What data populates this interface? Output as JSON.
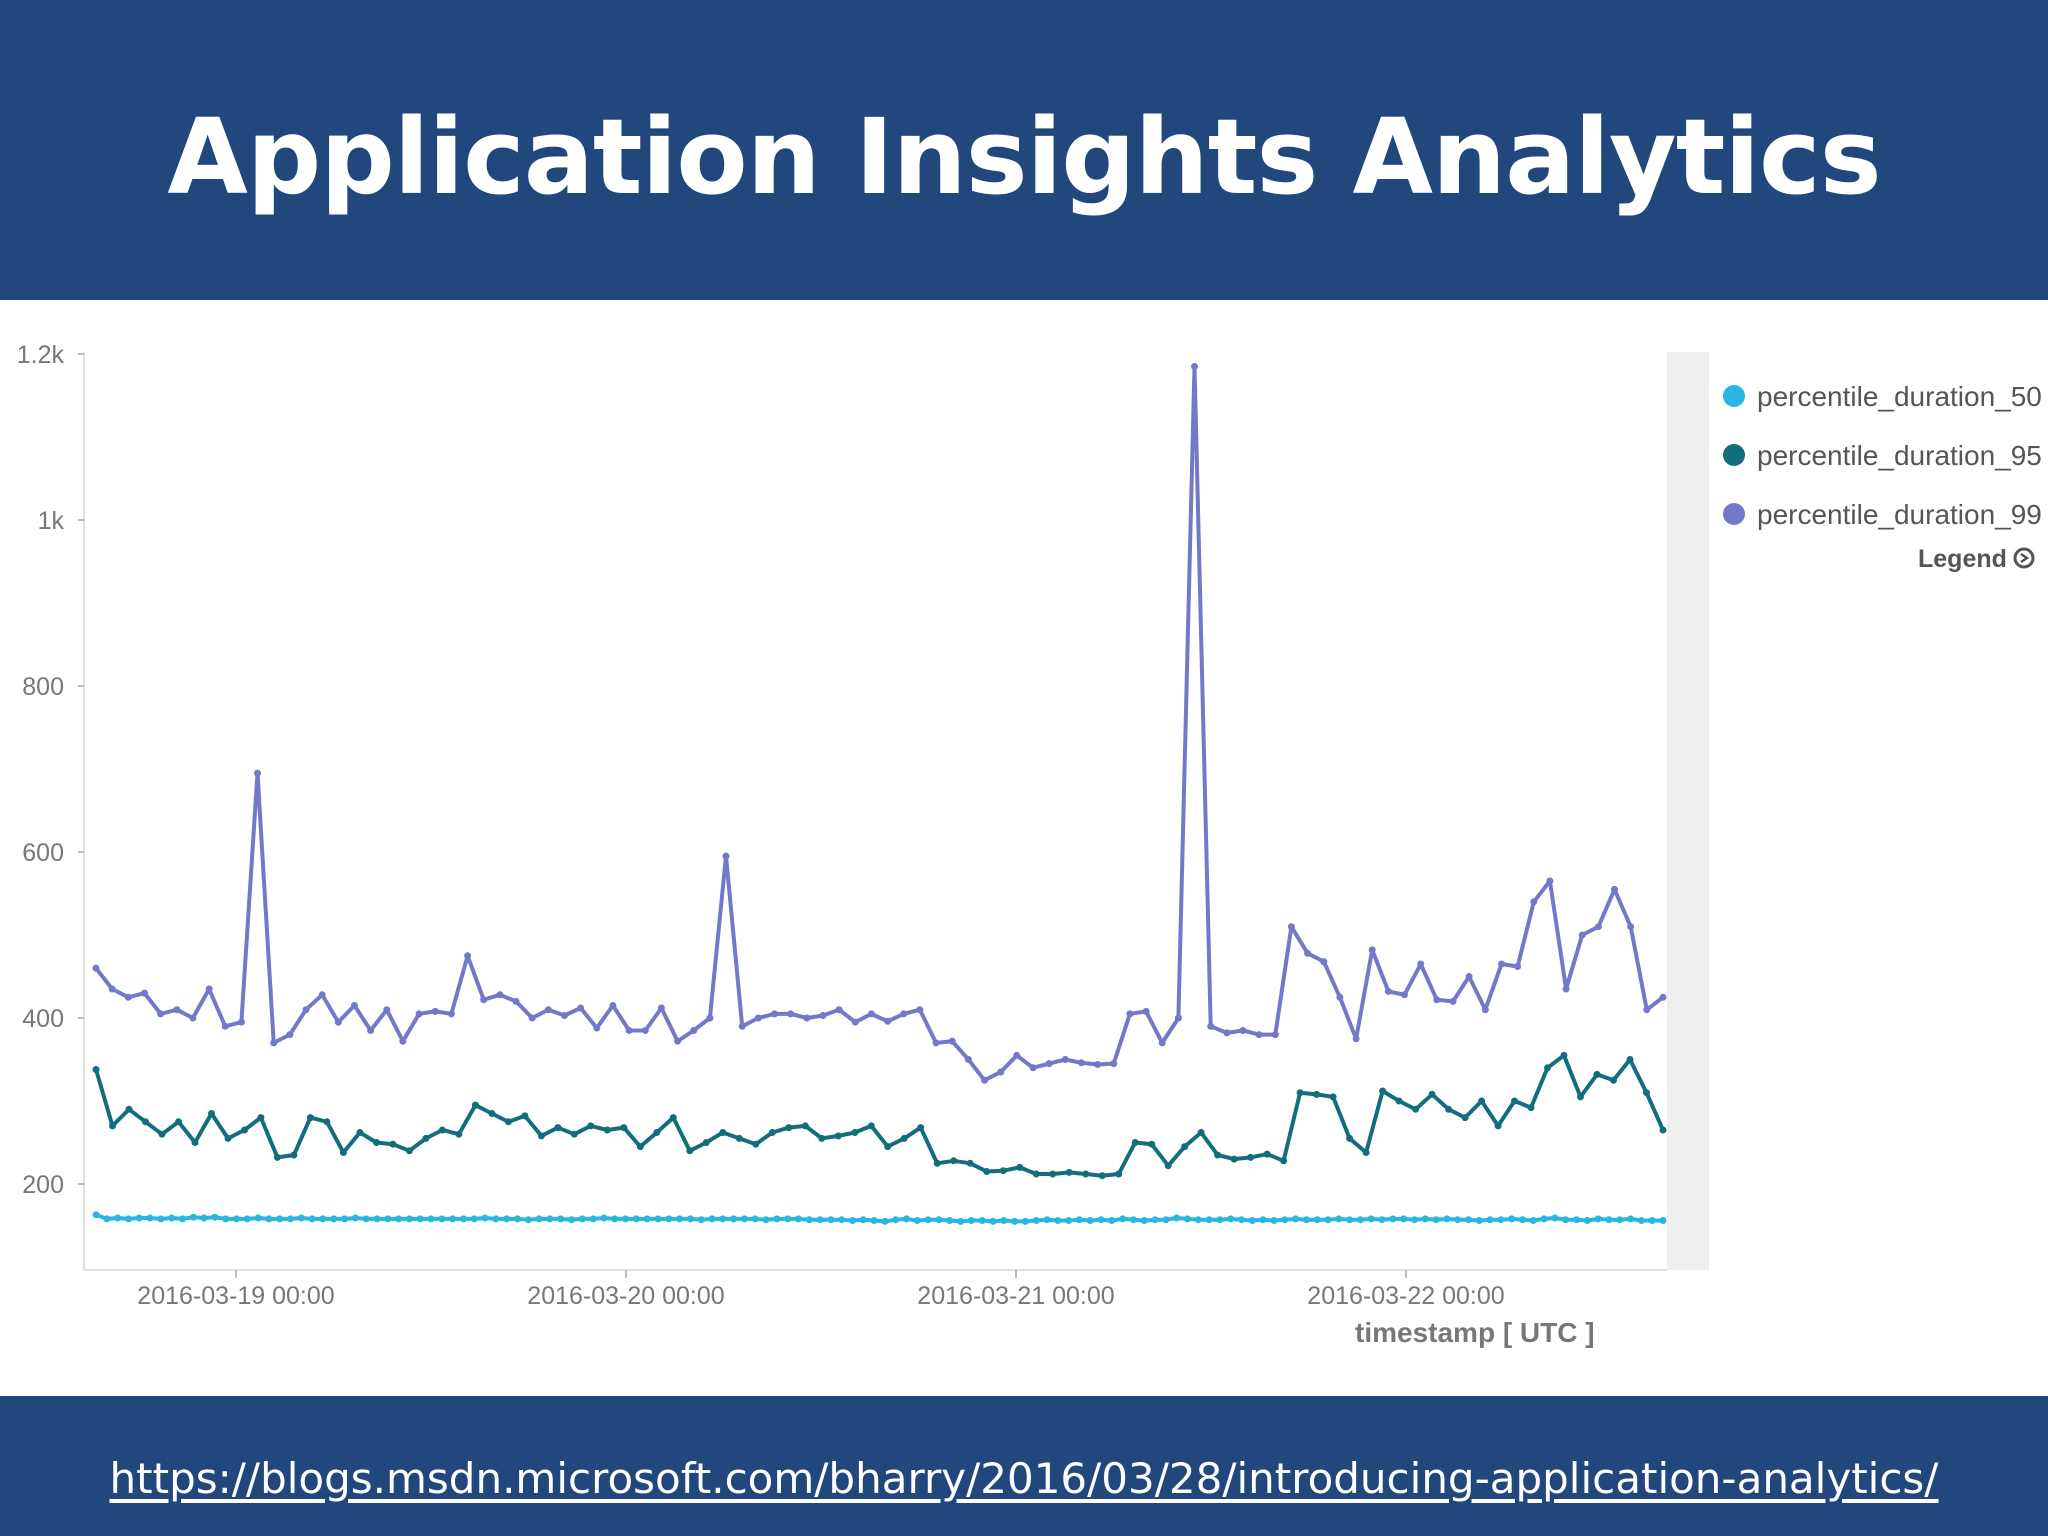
{
  "slide": {
    "title": "Application Insights Analytics",
    "link": "https://blogs.msdn.microsoft.com/bharry/2016/03/28/introducing-application-analytics/"
  },
  "colors": {
    "banner": "#21477c",
    "text": "#ffffff"
  },
  "chart_data": {
    "type": "line",
    "title": "",
    "xlabel": "timestamp [ UTC ]",
    "ylabel": "",
    "legend_title": "Legend",
    "legend_position": "top-right",
    "grid": false,
    "ylim": [
      100,
      1200
    ],
    "yticks": [
      200,
      400,
      600,
      800,
      1000,
      1200
    ],
    "ytick_labels": [
      "200",
      "400",
      "600",
      "800",
      "1k",
      "1.2k"
    ],
    "xticks": [
      "2016-03-19 00:00",
      "2016-03-20 00:00",
      "2016-03-21 00:00",
      "2016-03-22 00:00"
    ],
    "xtick_hours": [
      20,
      44,
      68,
      92
    ],
    "x_start": "2016-03-18 11:00",
    "x_step_hours": 0.9,
    "series": [
      {
        "name": "percentile_duration_50",
        "color": "#29b6e0",
        "values": [
          163,
          158,
          159,
          158,
          159,
          159,
          158,
          159,
          158,
          160,
          159,
          160,
          158,
          158,
          158,
          159,
          158,
          158,
          158,
          159,
          158,
          158,
          158,
          158,
          159,
          158,
          158,
          158,
          158,
          158,
          158,
          158,
          158,
          158,
          158,
          158,
          159,
          158,
          158,
          158,
          157,
          158,
          158,
          158,
          157,
          158,
          158,
          159,
          158,
          158,
          158,
          158,
          158,
          158,
          158,
          158,
          157,
          158,
          158,
          158,
          158,
          158,
          157,
          158,
          158,
          158,
          157,
          157,
          157,
          157,
          156,
          157,
          156,
          155,
          157,
          158,
          156,
          157,
          157,
          156,
          155,
          156,
          156,
          155,
          156,
          155,
          155,
          156,
          157,
          156,
          156,
          157,
          156,
          157,
          156,
          158,
          157,
          156,
          157,
          157,
          159,
          158,
          157,
          157,
          157,
          158,
          157,
          156,
          157,
          156,
          157,
          158,
          157,
          157,
          157,
          158,
          157,
          157,
          158,
          157,
          158,
          158,
          157,
          158,
          157,
          158,
          157,
          157,
          156,
          157,
          157,
          158,
          157,
          156,
          158,
          159,
          157,
          157,
          156,
          158,
          157,
          157,
          158,
          156,
          156,
          156
        ]
      },
      {
        "name": "percentile_duration_95",
        "color": "#126e7d",
        "values": [
          338,
          270,
          290,
          275,
          260,
          275,
          250,
          285,
          255,
          265,
          280,
          232,
          235,
          280,
          275,
          238,
          262,
          250,
          248,
          240,
          255,
          265,
          260,
          295,
          285,
          275,
          282,
          258,
          268,
          260,
          270,
          265,
          268,
          245,
          262,
          280,
          240,
          250,
          262,
          255,
          248,
          262,
          268,
          270,
          255,
          258,
          262,
          270,
          245,
          255,
          268,
          225,
          228,
          225,
          215,
          216,
          220,
          212,
          212,
          214,
          212,
          210,
          212,
          250,
          248,
          222,
          245,
          262,
          235,
          230,
          232,
          236,
          228,
          310,
          308,
          305,
          255,
          238,
          312,
          300,
          290,
          308,
          290,
          280,
          300,
          270,
          300,
          292,
          340,
          355,
          305,
          332,
          325,
          350,
          310,
          265
        ]
      },
      {
        "name": "percentile_duration_99",
        "color": "#7378c8",
        "values": [
          460,
          435,
          425,
          430,
          405,
          410,
          400,
          435,
          390,
          395,
          695,
          370,
          380,
          410,
          428,
          395,
          415,
          385,
          410,
          372,
          405,
          408,
          405,
          475,
          422,
          428,
          420,
          400,
          410,
          403,
          412,
          388,
          415,
          385,
          385,
          412,
          372,
          385,
          400,
          595,
          390,
          400,
          405,
          405,
          400,
          403,
          410,
          395,
          405,
          396,
          405,
          410,
          370,
          372,
          350,
          325,
          335,
          355,
          340,
          345,
          350,
          346,
          344,
          345,
          405,
          408,
          370,
          400,
          1185,
          390,
          382,
          385,
          380,
          380,
          510,
          478,
          468,
          425,
          375,
          482,
          432,
          428,
          465,
          422,
          420,
          450,
          410,
          465,
          462,
          540,
          565,
          435,
          500,
          510,
          555,
          510,
          410,
          425
        ]
      }
    ]
  }
}
